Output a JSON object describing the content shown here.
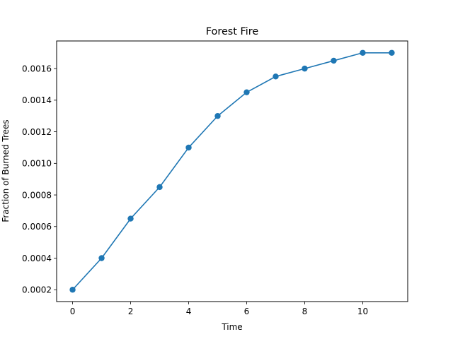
{
  "chart_data": {
    "type": "line",
    "title": "Forest Fire",
    "xlabel": "Time",
    "ylabel": "Fraction of Burned Trees",
    "xlim": [
      -0.55,
      11.55
    ],
    "ylim": [
      0.000125,
      0.001775
    ],
    "xticks": [
      0,
      2,
      4,
      6,
      8,
      10
    ],
    "xtick_labels": [
      "0",
      "2",
      "4",
      "6",
      "8",
      "10"
    ],
    "yticks": [
      0.0002,
      0.0004,
      0.0006,
      0.0008,
      0.001,
      0.0012,
      0.0014,
      0.0016
    ],
    "ytick_labels": [
      "0.0002",
      "0.0004",
      "0.0006",
      "0.0008",
      "0.0010",
      "0.0012",
      "0.0014",
      "0.0016"
    ],
    "grid": false,
    "series": [
      {
        "name": "Fraction of Burned Trees",
        "color": "#1f77b4",
        "marker": "circle",
        "x": [
          0,
          1,
          2,
          3,
          4,
          5,
          6,
          7,
          8,
          9,
          10,
          11
        ],
        "values": [
          0.0002,
          0.0004,
          0.00065,
          0.00085,
          0.0011,
          0.0013,
          0.00145,
          0.00155,
          0.0016,
          0.00165,
          0.0017,
          0.0017
        ]
      }
    ]
  }
}
